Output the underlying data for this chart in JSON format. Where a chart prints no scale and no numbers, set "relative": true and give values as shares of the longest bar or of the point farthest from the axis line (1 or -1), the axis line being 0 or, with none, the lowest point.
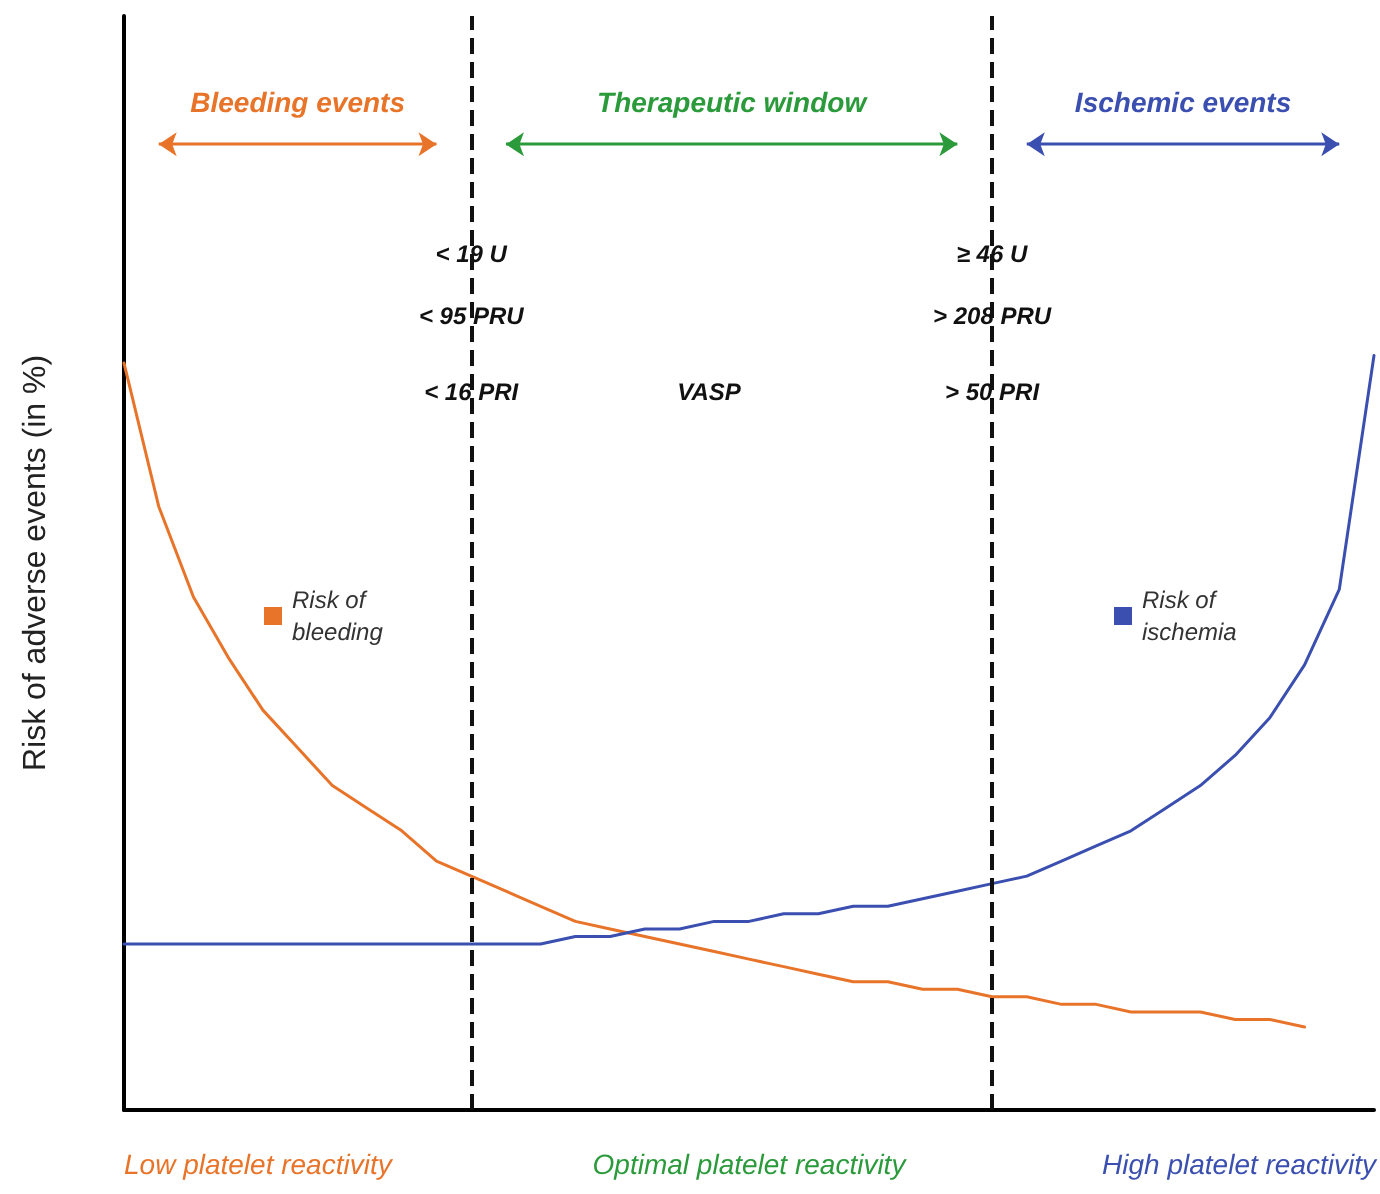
{
  "chart_data": {
    "type": "line",
    "relative": true,
    "ylabel": "Risk of adverse events (in %)",
    "categories": [
      null,
      null,
      null,
      null,
      null,
      null,
      null,
      null,
      null,
      null,
      null,
      null,
      null,
      null,
      null,
      null,
      null,
      null,
      null,
      null,
      null,
      null,
      null,
      null,
      null,
      null,
      null,
      null,
      null,
      null,
      null,
      null,
      null,
      null,
      null,
      null,
      null
    ],
    "series": [
      {
        "name": "Risk of bleeding",
        "color": "#e8742a",
        "values": [
          0.99,
          0.8,
          0.68,
          0.6,
          0.53,
          0.48,
          0.43,
          0.4,
          0.37,
          0.33,
          0.31,
          0.29,
          0.27,
          0.25,
          0.24,
          0.23,
          0.22,
          0.21,
          0.2,
          0.19,
          0.18,
          0.17,
          0.17,
          0.16,
          0.16,
          0.15,
          0.15,
          0.14,
          0.14,
          0.13,
          0.13,
          0.13,
          0.12,
          0.12,
          0.11,
          null,
          null
        ]
      },
      {
        "name": "Risk of ischemia",
        "color": "#3a4fb0",
        "values": [
          0.22,
          0.22,
          0.22,
          0.22,
          0.22,
          0.22,
          0.22,
          0.22,
          0.22,
          0.22,
          0.22,
          0.22,
          0.22,
          0.23,
          0.23,
          0.24,
          0.24,
          0.25,
          0.25,
          0.26,
          0.26,
          0.27,
          0.27,
          0.28,
          0.29,
          0.3,
          0.31,
          0.33,
          0.35,
          0.37,
          0.4,
          0.43,
          0.47,
          0.52,
          0.59,
          0.69,
          1.0
        ]
      }
    ],
    "annotations": [
      "Bleeding events",
      "Therapeutic window",
      "Ischemic events",
      "< 19 U",
      "< 95 PRU",
      "< 16 PRI",
      "VASP",
      "≥ 46 U",
      "> 208 PRU",
      "> 50 PRI",
      "Low platelet reactivity",
      "Optimal platelet reactivity",
      "High platelet reactivity"
    ],
    "legend": "center",
    "marker": "none",
    "line_style": "solid",
    "grid": false
  }
}
